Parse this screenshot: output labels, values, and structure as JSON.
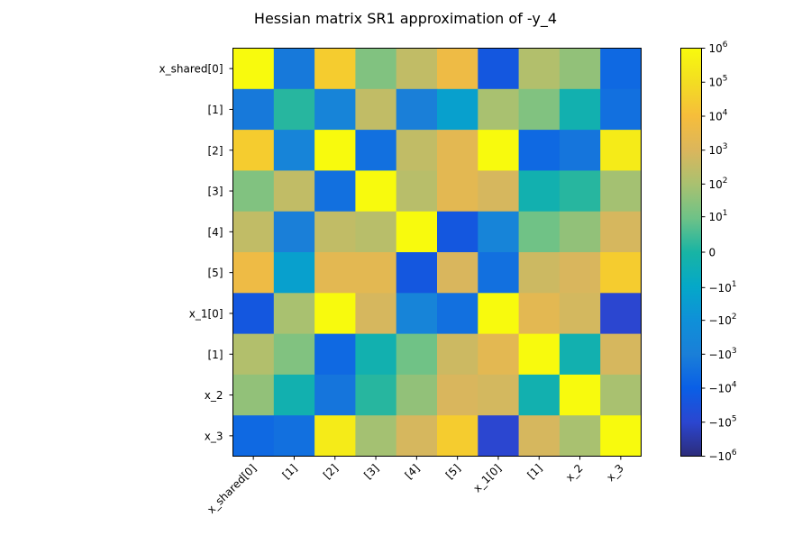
{
  "chart_data": {
    "type": "heatmap",
    "title": "Hessian matrix SR1 approximation of -y_4",
    "row_labels": [
      "x_shared[0]",
      "[1]",
      "[2]",
      "[3]",
      "[4]",
      "[5]",
      "x_1[0]",
      "[1]",
      "x_2",
      "x_3"
    ],
    "col_labels": [
      "x_shared[0]",
      "[1]",
      "[2]",
      "[3]",
      "[4]",
      "[5]",
      "x_1[0]",
      "[1]",
      "x_2",
      "x_3"
    ],
    "scale": "symlog",
    "vmin": -1000000,
    "vmax": 1000000,
    "colorbar_ticks": [
      {
        "value": 1000000,
        "base": "10",
        "sign": "",
        "exp": "6"
      },
      {
        "value": 100000,
        "base": "10",
        "sign": "",
        "exp": "5"
      },
      {
        "value": 10000,
        "base": "10",
        "sign": "",
        "exp": "4"
      },
      {
        "value": 1000,
        "base": "10",
        "sign": "",
        "exp": "3"
      },
      {
        "value": 100,
        "base": "10",
        "sign": "",
        "exp": "2"
      },
      {
        "value": 10,
        "base": "10",
        "sign": "",
        "exp": "1"
      },
      {
        "value": 0,
        "base": "0",
        "sign": "",
        "exp": ""
      },
      {
        "value": -10,
        "base": "10",
        "sign": "−",
        "exp": "1"
      },
      {
        "value": -100,
        "base": "10",
        "sign": "−",
        "exp": "2"
      },
      {
        "value": -1000,
        "base": "10",
        "sign": "−",
        "exp": "3"
      },
      {
        "value": -10000,
        "base": "10",
        "sign": "−",
        "exp": "4"
      },
      {
        "value": -100000,
        "base": "10",
        "sign": "−",
        "exp": "5"
      },
      {
        "value": -1000000,
        "base": "10",
        "sign": "−",
        "exp": "6"
      }
    ],
    "colormap": [
      {
        "v": -6,
        "color": "#2c2c7a"
      },
      {
        "v": -5,
        "color": "#2b46d0"
      },
      {
        "v": -4,
        "color": "#0a5fe6"
      },
      {
        "v": -3,
        "color": "#1a7fd8"
      },
      {
        "v": -2,
        "color": "#0f90d8"
      },
      {
        "v": -1,
        "color": "#05a8c8"
      },
      {
        "v": 0,
        "color": "#18b4a4"
      },
      {
        "v": 1,
        "color": "#6ec287"
      },
      {
        "v": 2,
        "color": "#a9c170"
      },
      {
        "v": 3,
        "color": "#dbb65c"
      },
      {
        "v": 4,
        "color": "#f6bd3b"
      },
      {
        "v": 5,
        "color": "#f3dd22"
      },
      {
        "v": 6,
        "color": "#f8fa0d"
      }
    ],
    "values": [
      [
        1300000,
        -1500,
        30000,
        20,
        300,
        5000,
        -20000,
        150,
        40,
        -5000
      ],
      [
        -1500,
        0.5,
        -500,
        300,
        -1000,
        -20,
        100,
        20,
        -1,
        -3000
      ],
      [
        30000,
        -500,
        1000000,
        -3000,
        300,
        2000,
        1000000,
        -5000,
        -2000,
        300000
      ],
      [
        20,
        300,
        -3000,
        1000000,
        200,
        2000,
        800,
        -1,
        0.5,
        80
      ],
      [
        300,
        -1000,
        300,
        200,
        1000000,
        -20000,
        -500,
        10,
        40,
        800
      ],
      [
        5000,
        -20,
        2000,
        2000,
        -20000,
        900,
        -3000,
        500,
        900,
        30000
      ],
      [
        -20000,
        100,
        1000000,
        800,
        -500,
        -3000,
        1000000,
        2000,
        700,
        -100000
      ],
      [
        150,
        20,
        -5000,
        -1,
        10,
        500,
        2000,
        1000000,
        -1,
        800
      ],
      [
        40,
        -1,
        -2000,
        0.5,
        40,
        900,
        700,
        -1,
        1000000,
        100
      ],
      [
        -5000,
        -3000,
        300000,
        80,
        800,
        30000,
        -100000,
        800,
        100,
        1000000
      ]
    ]
  }
}
